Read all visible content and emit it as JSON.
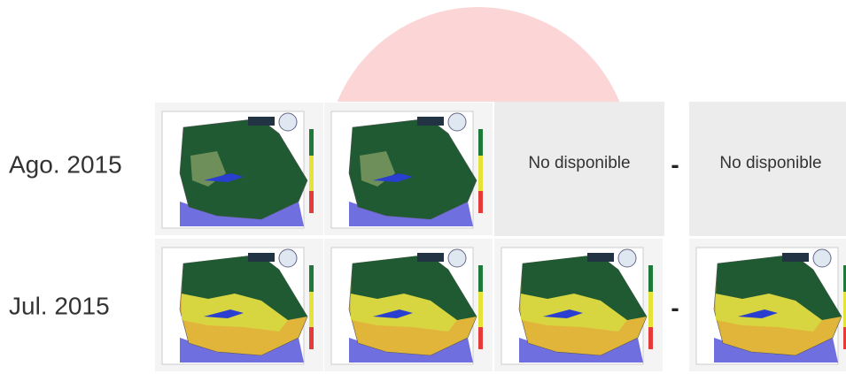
{
  "rows": [
    {
      "label": "Ago. 2015",
      "unavailable": [
        "No disponible",
        "No disponible"
      ],
      "separator": "-"
    },
    {
      "label": "Jul. 2015",
      "separator": "-"
    }
  ]
}
